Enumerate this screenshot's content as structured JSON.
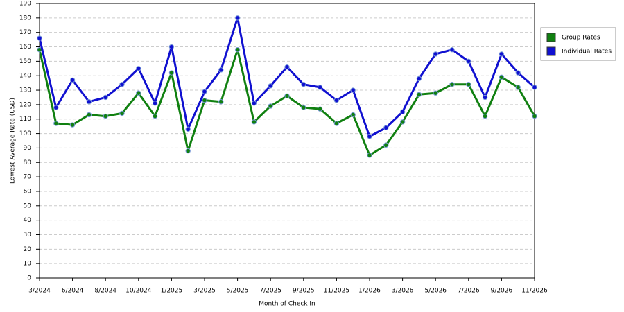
{
  "chart_data": {
    "type": "line",
    "y_label": "Lowest Average Rate (USD)",
    "x_label": "Month of Check In",
    "categories": [
      "3/2024",
      null,
      "6/2024",
      null,
      "8/2024",
      null,
      "10/2024",
      null,
      "1/2025",
      null,
      "3/2025",
      null,
      "5/2025",
      null,
      "7/2025",
      null,
      "9/2025",
      null,
      "11/2025",
      null,
      "1/2026",
      null,
      "3/2026",
      null,
      "5/2026",
      null,
      "7/2026",
      null,
      "9/2026",
      null,
      "11/2026"
    ],
    "series": [
      {
        "name": "Group Rates",
        "color": "#108010",
        "values": [
          158,
          107,
          106,
          113,
          112,
          114,
          128,
          112,
          142,
          88,
          123,
          122,
          158,
          108,
          119,
          126,
          118,
          117,
          107,
          113,
          85,
          92,
          108,
          127,
          128,
          134,
          134,
          112,
          139,
          132,
          112
        ]
      },
      {
        "name": "Individual Rates",
        "color": "#1010d0",
        "values": [
          166,
          118,
          137,
          122,
          125,
          134,
          145,
          121,
          160,
          103,
          129,
          144,
          180,
          121,
          133,
          146,
          134,
          132,
          123,
          130,
          98,
          104,
          115,
          138,
          155,
          158,
          150,
          125,
          155,
          142,
          132
        ]
      }
    ],
    "ylim": [
      0,
      190
    ],
    "yticks": [
      0,
      10,
      20,
      30,
      40,
      50,
      60,
      70,
      80,
      90,
      100,
      110,
      120,
      130,
      140,
      150,
      160,
      170,
      180,
      190
    ],
    "grid": true,
    "legend": "right"
  }
}
